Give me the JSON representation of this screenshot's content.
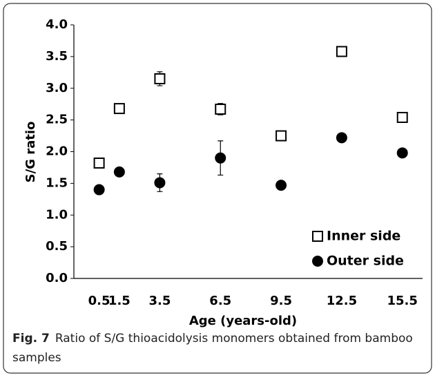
{
  "chart_data": {
    "type": "scatter",
    "xlabel": "Age (years-old)",
    "ylabel": "S/G ratio",
    "xlim": [
      -0.75,
      16.5
    ],
    "xticks": [
      0.5,
      1.5,
      3.5,
      6.5,
      9.5,
      12.5,
      15.5
    ],
    "ylim": [
      0,
      4
    ],
    "yticks": [
      {
        "value": 0,
        "label": "0.0"
      },
      0.5,
      {
        "value": 1,
        "label": "1.0"
      },
      1.5,
      {
        "value": 2,
        "label": "2.0"
      },
      2.5,
      {
        "value": 3,
        "label": "3.0"
      },
      3.5,
      {
        "value": 4,
        "label": "4.0"
      }
    ],
    "legend": "lower right",
    "series": [
      {
        "name": "Inner side",
        "marker": "square",
        "color": "#000000",
        "x": [
          0.5,
          1.5,
          3.5,
          6.5,
          9.5,
          12.5,
          15.5
        ],
        "values": [
          1.82,
          2.68,
          3.15,
          2.67,
          2.25,
          3.58,
          2.54
        ],
        "errors": [
          0.02,
          0.03,
          0.11,
          0.09,
          0.05,
          0.06,
          0.04
        ]
      },
      {
        "name": "Outer side",
        "marker": "circle",
        "color": "#000000",
        "x": [
          0.5,
          1.5,
          3.5,
          6.5,
          9.5,
          12.5,
          15.5
        ],
        "values": [
          1.4,
          1.68,
          1.51,
          1.9,
          1.47,
          2.22,
          1.98
        ],
        "errors": [
          0.02,
          0.03,
          0.14,
          0.27,
          0.02,
          0.03,
          0.03
        ]
      }
    ]
  },
  "caption": {
    "label": "Fig. 7",
    "lines": [
      "Ratio of S/G thioacidolysis monomers obtained from bamboo",
      "samples"
    ]
  }
}
